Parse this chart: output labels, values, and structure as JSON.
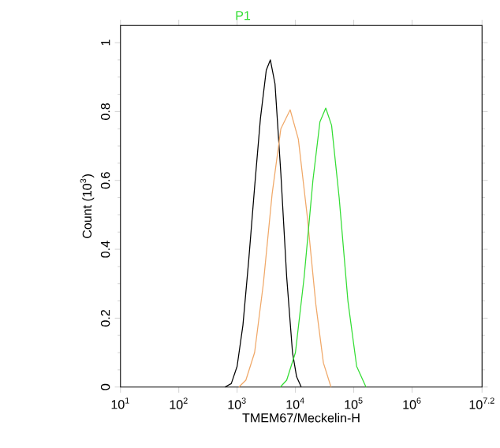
{
  "chart_data": {
    "type": "line",
    "xlabel": "TMEM67/Meckelin-H",
    "ylabel": "Count (10$^{3}$)",
    "log": "x",
    "xlim": [
      10,
      15848932
    ],
    "ylim": [
      0,
      1.05
    ],
    "xticks": [
      {
        "value": 10,
        "label": "10$^{1}$"
      },
      {
        "value": 100,
        "label": "10$^{2}$"
      },
      {
        "value": 1000,
        "label": "10$^{3}$"
      },
      {
        "value": 10000,
        "label": "10$^{4}$"
      },
      {
        "value": 100000,
        "label": "10$^{5}$"
      },
      {
        "value": 1000000,
        "label": "10$^{6}$"
      },
      {
        "value": 15848932,
        "label": "10$^{7.2}$"
      }
    ],
    "yticks": [
      0,
      0.2,
      0.4,
      0.6,
      0.8,
      1
    ],
    "legend": false,
    "grid": false,
    "marker": "none",
    "line_style": "solid",
    "series": [
      {
        "color": "#000000",
        "x": [
          617,
          794,
          1000,
          1259,
          1585,
          1995,
          2512,
          3162,
          3715,
          4467,
          5623,
          7079,
          8913,
          10471,
          12589
        ],
        "values": [
          0,
          0.01,
          0.06,
          0.18,
          0.37,
          0.58,
          0.78,
          0.92,
          0.95,
          0.88,
          0.62,
          0.32,
          0.1,
          0.03,
          0
        ]
      },
      {
        "color": "#f0a868",
        "x": [
          1072,
          1413,
          1995,
          2818,
          3981,
          5623,
          8128,
          11220,
          15849,
          22387,
          30200,
          40738
        ],
        "values": [
          0,
          0.02,
          0.1,
          0.3,
          0.56,
          0.75,
          0.805,
          0.72,
          0.5,
          0.24,
          0.07,
          0
        ]
      },
      {
        "name": "P1",
        "color": "#33dd33",
        "x": [
          5495,
          7079,
          10000,
          14125,
          19953,
          26303,
          33113,
          41687,
          56234,
          79433,
          112202,
          162181
        ],
        "values": [
          0,
          0.02,
          0.1,
          0.32,
          0.6,
          0.77,
          0.81,
          0.76,
          0.55,
          0.25,
          0.06,
          0
        ]
      }
    ]
  }
}
